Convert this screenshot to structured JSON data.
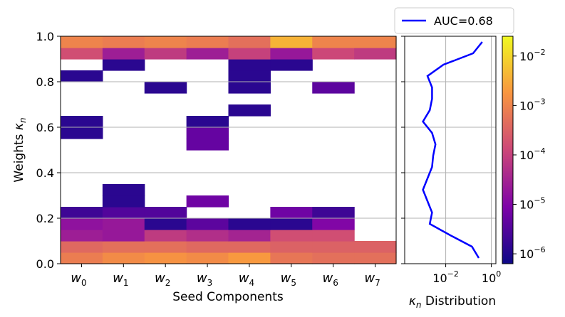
{
  "chart_data": [
    {
      "type": "heatmap",
      "title": "",
      "xlabel": "Seed Components",
      "ylabel": "Weights κ_n",
      "ylim": [
        0.0,
        1.0
      ],
      "yticks": [
        "0.0",
        "0.2",
        "0.4",
        "0.6",
        "0.8",
        "1.0"
      ],
      "categories": [
        "w0",
        "w1",
        "w2",
        "w3",
        "w4",
        "w5",
        "w6",
        "w7"
      ],
      "category_labels": [
        {
          "base": "w",
          "sub": "0"
        },
        {
          "base": "w",
          "sub": "1"
        },
        {
          "base": "w",
          "sub": "2"
        },
        {
          "base": "w",
          "sub": "3"
        },
        {
          "base": "w",
          "sub": "4"
        },
        {
          "base": "w",
          "sub": "5"
        },
        {
          "base": "w",
          "sub": "6"
        },
        {
          "base": "w",
          "sub": "7"
        }
      ],
      "bin_width": 0.05,
      "bins_note": "row 0 = [0.0,0.05); value = log10 of density; null = empty",
      "log10_values": [
        [
          -3.1,
          -2.9,
          -2.8,
          -2.9,
          -2.7,
          -3.2,
          -3.3,
          -3.3
        ],
        [
          -3.4,
          -3.3,
          -3.3,
          -3.4,
          -3.4,
          -3.5,
          -3.5,
          -3.5
        ],
        [
          -4.6,
          -4.7,
          -4.1,
          -4.3,
          -4.5,
          -3.8,
          -3.8,
          null
        ],
        [
          -4.8,
          -4.7,
          -5.9,
          -5.4,
          -5.9,
          -5.9,
          -5.0,
          null
        ],
        [
          -5.7,
          -5.5,
          -5.5,
          null,
          null,
          -5.2,
          -5.7,
          null
        ],
        [
          null,
          -5.9,
          null,
          -5.2,
          null,
          null,
          null,
          null
        ],
        [
          null,
          -5.9,
          null,
          null,
          null,
          null,
          null,
          null
        ],
        [
          null,
          null,
          null,
          null,
          null,
          null,
          null,
          null
        ],
        [
          null,
          null,
          null,
          null,
          null,
          null,
          null,
          null
        ],
        [
          null,
          null,
          null,
          null,
          null,
          null,
          null,
          null
        ],
        [
          null,
          null,
          null,
          -5.3,
          null,
          null,
          null,
          null
        ],
        [
          -5.9,
          null,
          null,
          -5.3,
          null,
          null,
          null,
          null
        ],
        [
          -5.9,
          null,
          null,
          -5.9,
          null,
          null,
          null,
          null
        ],
        [
          null,
          null,
          null,
          null,
          -5.9,
          null,
          null,
          null
        ],
        [
          null,
          null,
          null,
          null,
          null,
          null,
          null,
          null
        ],
        [
          null,
          null,
          -5.9,
          null,
          -5.9,
          null,
          -5.4,
          null
        ],
        [
          -5.9,
          null,
          null,
          null,
          -5.9,
          null,
          null,
          null
        ],
        [
          null,
          -5.9,
          null,
          null,
          -5.9,
          -5.9,
          null,
          null
        ],
        [
          -3.8,
          -4.6,
          -4.1,
          -4.6,
          -4.0,
          -4.7,
          -3.9,
          -4.1
        ],
        [
          -3.0,
          -3.1,
          -3.0,
          -3.1,
          -3.3,
          -2.4,
          -3.0,
          -3.0
        ]
      ]
    },
    {
      "type": "line",
      "xlabel": "κ_n Distribution",
      "xscale": "log",
      "xlim_log10": [
        -3.8,
        0.2
      ],
      "xticks": [
        {
          "base": "10",
          "exp": "−2",
          "log10": -2
        },
        {
          "base": "10",
          "exp": "0",
          "log10": 0
        }
      ],
      "ylim": [
        0.0,
        1.0
      ],
      "series": [
        {
          "name": "AUC=0.68",
          "color": "#0000ff",
          "y": [
            0.0,
            0.05,
            0.1,
            0.15,
            0.2,
            0.25,
            0.3,
            0.35,
            0.4,
            0.45,
            0.5,
            0.55,
            0.6,
            0.65,
            0.7,
            0.75,
            0.8,
            0.85,
            0.9,
            0.95
          ],
          "x_log10": [
            -0.55,
            -0.85,
            -1.8,
            -2.7,
            -2.6,
            -2.8,
            -3.0,
            -2.8,
            -2.6,
            -2.55,
            -2.45,
            -2.6,
            -3.0,
            -2.7,
            -2.6,
            -2.6,
            -2.8,
            -2.1,
            -0.8,
            -0.4
          ]
        }
      ]
    }
  ],
  "colorbar": {
    "colormap": "plasma",
    "scale": "log",
    "range_log10": [
      -6.2,
      -1.6
    ],
    "tick_exponents": [
      "−2",
      "−3",
      "−4",
      "−5",
      "−6"
    ],
    "tick_values_log10": [
      -2,
      -3,
      -4,
      -5,
      -6
    ],
    "tick_base": "10"
  },
  "legend": {
    "label": "AUC=0.68",
    "color": "#0000ff",
    "placement": "top-right"
  }
}
